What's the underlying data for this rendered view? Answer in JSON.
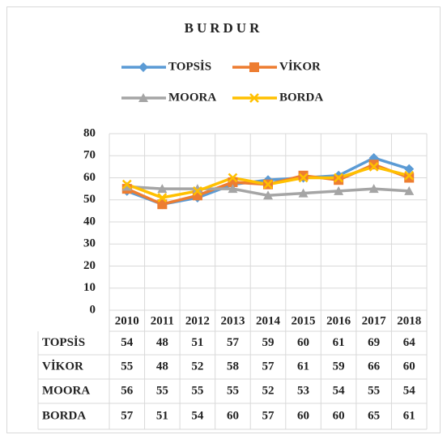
{
  "chart_data": {
    "type": "line",
    "title": "BURDUR",
    "categories": [
      "2010",
      "2011",
      "2012",
      "2013",
      "2014",
      "2015",
      "2016",
      "2017",
      "2018"
    ],
    "series": [
      {
        "name": "TOPSİS",
        "color": "#5b9bd5",
        "marker": "diamond",
        "values": [
          54,
          48,
          51,
          57,
          59,
          60,
          61,
          69,
          64
        ]
      },
      {
        "name": "VİKOR",
        "color": "#ed7d31",
        "marker": "square",
        "values": [
          55,
          48,
          52,
          58,
          57,
          61,
          59,
          66,
          60
        ]
      },
      {
        "name": "MOORA",
        "color": "#a5a5a5",
        "marker": "triangle",
        "values": [
          56,
          55,
          55,
          55,
          52,
          53,
          54,
          55,
          54
        ]
      },
      {
        "name": "BORDA",
        "color": "#ffc000",
        "marker": "x",
        "values": [
          57,
          51,
          54,
          60,
          57,
          60,
          60,
          65,
          61
        ]
      }
    ],
    "ylim": [
      0,
      80
    ],
    "yticks": [
      0,
      10,
      20,
      30,
      40,
      50,
      60,
      70,
      80
    ],
    "grid": true,
    "legend": "top",
    "data_table": true
  }
}
